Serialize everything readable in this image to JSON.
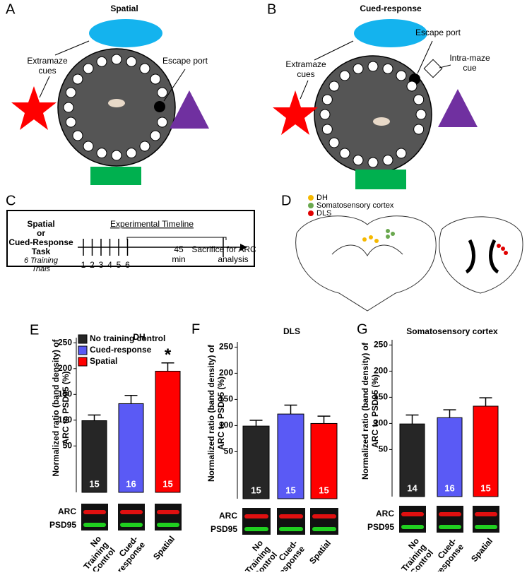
{
  "panels": {
    "A": {
      "letter": "A",
      "title": "Spatial",
      "cues": [
        "Extramaze",
        "cues"
      ],
      "port": "Escape port"
    },
    "B": {
      "letter": "B",
      "title": "Cued-response",
      "cues": [
        "Extramaze",
        "cues"
      ],
      "port": "Escape port",
      "intra": [
        "Intra-maze",
        "cue"
      ]
    },
    "C": {
      "letter": "C",
      "task": [
        "Spatial",
        "or",
        "Cued-Response",
        "Task"
      ],
      "trials": [
        "6 Training",
        "Trials"
      ],
      "heading": "Experimental Timeline",
      "ticks": [
        "1",
        "2",
        "3",
        "4",
        "5",
        "6"
      ],
      "delay": [
        "45",
        "min"
      ],
      "end": [
        "Sacrifice for ARC",
        "analysis"
      ]
    },
    "D": {
      "letter": "D",
      "legend": [
        "DH",
        "Somatosensory cortex",
        "DLS"
      ]
    }
  },
  "chart_data": [
    {
      "type": "bar",
      "letter": "E",
      "title": "DH",
      "ylabel": [
        "Normalized ratio (band density) of",
        "ARC to PSD95 (%)"
      ],
      "categories": [
        [
          "No",
          "Training",
          "Control"
        ],
        [
          "Cued-",
          "response"
        ],
        [
          "Spatial"
        ]
      ],
      "values": [
        99,
        132,
        195
      ],
      "errors": [
        11,
        16,
        16
      ],
      "n_labels": [
        15,
        16,
        15
      ],
      "colors": [
        "#262626",
        "#5a5af5",
        "#ff0000"
      ],
      "legend": [
        "No training control",
        "Cued-response",
        "Spatial"
      ],
      "annotations": [
        {
          "text": "*",
          "category": 2
        }
      ],
      "blot_labels": [
        "ARC",
        "PSD95"
      ],
      "ylim": [
        -40,
        260
      ],
      "yticks": [
        50,
        100,
        150,
        200,
        250
      ]
    },
    {
      "type": "bar",
      "letter": "F",
      "title": "DLS",
      "ylabel": [
        "Normalized ratio (band density) of",
        "ARC to PSD95 (%)"
      ],
      "categories": [
        [
          "No",
          "Training",
          "Control"
        ],
        [
          "Cued-",
          "response"
        ],
        [
          "Spatial"
        ]
      ],
      "values": [
        99,
        122,
        104
      ],
      "errors": [
        11,
        17,
        14
      ],
      "n_labels": [
        15,
        15,
        15
      ],
      "colors": [
        "#262626",
        "#5a5af5",
        "#ff0000"
      ],
      "blot_labels": [
        "ARC",
        "PSD95"
      ],
      "ylim": [
        -40,
        260
      ],
      "yticks": [
        50,
        100,
        150,
        200,
        250
      ]
    },
    {
      "type": "bar",
      "letter": "G",
      "title": "Somatosensory cortex",
      "ylabel": [
        "Normalized ratio (band density) of",
        "ARC to PSD95 (%)"
      ],
      "categories": [
        [
          "No",
          "Training",
          "Control"
        ],
        [
          "Cued-",
          "response"
        ],
        [
          "Spatial"
        ]
      ],
      "values": [
        99,
        111,
        133
      ],
      "errors": [
        17,
        15,
        16
      ],
      "n_labels": [
        14,
        16,
        15
      ],
      "colors": [
        "#262626",
        "#5a5af5",
        "#ff0000"
      ],
      "blot_labels": [
        "ARC",
        "PSD95"
      ],
      "ylim": [
        -40,
        260
      ],
      "yticks": [
        50,
        100,
        150,
        200,
        250
      ]
    }
  ]
}
